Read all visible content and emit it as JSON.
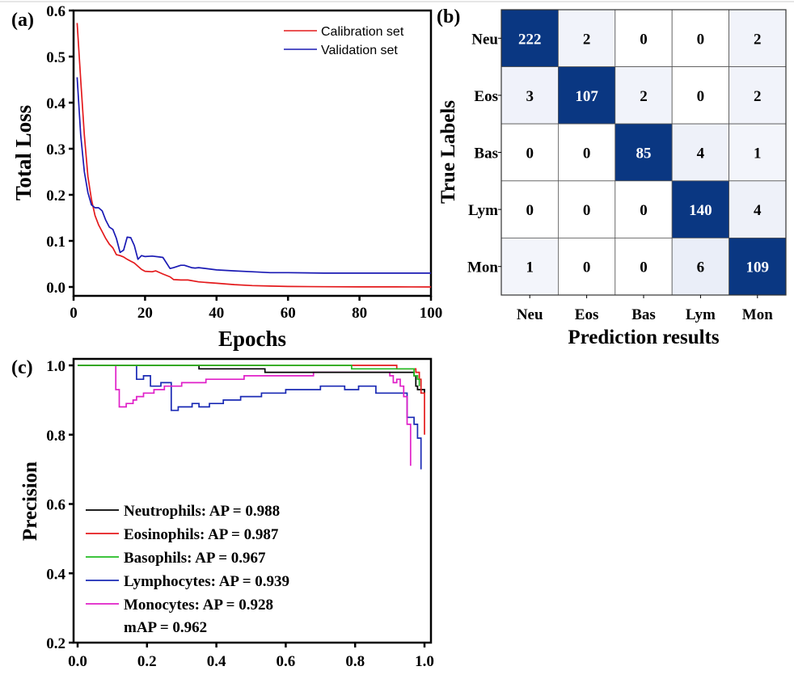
{
  "panels": {
    "a": {
      "label": "(a)"
    },
    "b": {
      "label": "(b)"
    },
    "c": {
      "label": "(c)"
    }
  },
  "chart_data": [
    {
      "id": "loss",
      "type": "line",
      "title": "",
      "xlabel": "Epochs",
      "ylabel": "Total Loss",
      "xlim": [
        0,
        100
      ],
      "ylim": [
        -0.02,
        0.6
      ],
      "xticks": [
        0,
        20,
        40,
        60,
        80,
        100
      ],
      "xtick_labels": [
        "0",
        "20",
        "40",
        "60",
        "80",
        "100"
      ],
      "yticks": [
        0.0,
        0.1,
        0.2,
        0.3,
        0.4,
        0.5,
        0.6
      ],
      "ytick_labels": [
        "0.0",
        "0.1",
        "0.2",
        "0.3",
        "0.4",
        "0.5",
        "0.6"
      ],
      "grid": false,
      "legend_position": "top-right",
      "series": [
        {
          "name": "Calibration set",
          "color": "#e41a1c",
          "x": [
            1,
            2,
            3,
            4,
            5,
            6,
            7,
            8,
            9,
            10,
            11,
            12,
            13,
            14,
            15,
            16,
            17,
            18,
            19,
            20,
            22,
            23,
            25,
            27,
            28,
            30,
            32,
            35,
            40,
            45,
            50,
            55,
            60,
            70,
            80,
            90,
            100
          ],
          "y": [
            0.573,
            0.45,
            0.33,
            0.24,
            0.19,
            0.155,
            0.135,
            0.12,
            0.105,
            0.093,
            0.085,
            0.07,
            0.068,
            0.065,
            0.06,
            0.056,
            0.052,
            0.045,
            0.038,
            0.034,
            0.033,
            0.035,
            0.028,
            0.022,
            0.016,
            0.015,
            0.015,
            0.011,
            0.008,
            0.005,
            0.003,
            0.002,
            0.001,
            0.0005,
            0.0002,
            0.0001,
            0.0
          ]
        },
        {
          "name": "Validation set",
          "color": "#1a1ab4",
          "x": [
            1,
            2,
            3,
            4,
            5,
            6,
            7,
            8,
            9,
            10,
            11,
            12,
            13,
            14,
            15,
            16,
            17,
            18,
            19,
            20,
            22,
            24,
            25,
            27,
            28,
            30,
            31,
            33,
            34,
            35,
            40,
            45,
            50,
            55,
            60,
            70,
            80,
            90,
            100
          ],
          "y": [
            0.455,
            0.33,
            0.25,
            0.205,
            0.178,
            0.172,
            0.172,
            0.165,
            0.145,
            0.13,
            0.125,
            0.105,
            0.075,
            0.08,
            0.108,
            0.107,
            0.09,
            0.06,
            0.068,
            0.066,
            0.067,
            0.065,
            0.064,
            0.04,
            0.042,
            0.047,
            0.047,
            0.042,
            0.041,
            0.042,
            0.037,
            0.035,
            0.033,
            0.031,
            0.031,
            0.03,
            0.03,
            0.03,
            0.03
          ]
        }
      ]
    },
    {
      "id": "confusion",
      "type": "heatmap",
      "title": "",
      "xlabel": "Prediction results",
      "ylabel": "True Labels",
      "row_labels": [
        "Neu",
        "Eos",
        "Bas",
        "Lym",
        "Mon"
      ],
      "col_labels": [
        "Neu",
        "Eos",
        "Bas",
        "Lym",
        "Mon"
      ],
      "values": [
        [
          222,
          2,
          0,
          0,
          2
        ],
        [
          3,
          107,
          2,
          0,
          2
        ],
        [
          0,
          0,
          85,
          4,
          1
        ],
        [
          0,
          0,
          0,
          140,
          4
        ],
        [
          1,
          0,
          0,
          6,
          109
        ]
      ],
      "colormap": {
        "low": "#ffffff",
        "mid": "#eaeef8",
        "high": "#0a3782"
      }
    },
    {
      "id": "pr",
      "type": "line",
      "title": "",
      "xlabel": "",
      "ylabel": "Precision",
      "xlim": [
        0.0,
        1.0
      ],
      "ylim": [
        0.2,
        1.0
      ],
      "xticks": [
        0.0,
        0.2,
        0.4,
        0.6,
        0.8,
        1.0
      ],
      "xtick_labels": [
        "0.0",
        "0.2",
        "0.4",
        "0.6",
        "0.8",
        "1.0"
      ],
      "yticks": [
        0.2,
        0.4,
        0.6,
        0.8,
        1.0
      ],
      "ytick_labels": [
        "0.2",
        "0.4",
        "0.6",
        "0.8",
        "1.0"
      ],
      "grid": false,
      "legend_position": "bottom-left",
      "legend_entries": [
        "Neutrophils: AP = 0.988",
        "Eosinophils: AP = 0.987",
        "Basophils: AP = 0.967",
        "Lymphocytes: AP = 0.939",
        "Monocytes: AP = 0.928"
      ],
      "annotation": "mAP = 0.962",
      "series": [
        {
          "name": "Neutrophils",
          "ap": 0.988,
          "color": "#000000",
          "x": [
            0.0,
            0.35,
            0.35,
            0.54,
            0.54,
            0.97,
            0.97,
            0.975,
            0.975,
            0.98,
            0.98,
            1.0,
            1.0
          ],
          "y": [
            1.0,
            1.0,
            0.99,
            0.99,
            0.98,
            0.98,
            0.97,
            0.97,
            0.94,
            0.94,
            0.93,
            0.93,
            0.92
          ]
        },
        {
          "name": "Eosinophils",
          "ap": 0.987,
          "color": "#e41a1c",
          "x": [
            0.0,
            0.92,
            0.92,
            0.975,
            0.975,
            0.985,
            0.985,
            0.99,
            0.99,
            1.0,
            1.0
          ],
          "y": [
            1.0,
            1.0,
            0.99,
            0.99,
            0.98,
            0.98,
            0.96,
            0.96,
            0.92,
            0.92,
            0.8
          ]
        },
        {
          "name": "Basophils",
          "ap": 0.967,
          "color": "#22bb22",
          "x": [
            0.0,
            0.79,
            0.79,
            0.97,
            0.97,
            0.98,
            0.98,
            0.985,
            0.985
          ],
          "y": [
            1.0,
            1.0,
            0.99,
            0.99,
            0.97,
            0.97,
            0.96,
            0.96,
            0.94
          ]
        },
        {
          "name": "Lymphocytes",
          "ap": 0.939,
          "color": "#1a2ab4",
          "x": [
            0.0,
            0.17,
            0.17,
            0.19,
            0.19,
            0.21,
            0.21,
            0.24,
            0.24,
            0.27,
            0.27,
            0.29,
            0.29,
            0.33,
            0.33,
            0.35,
            0.35,
            0.38,
            0.38,
            0.42,
            0.42,
            0.47,
            0.47,
            0.53,
            0.53,
            0.6,
            0.6,
            0.7,
            0.7,
            0.77,
            0.77,
            0.81,
            0.81,
            0.86,
            0.86,
            0.95,
            0.95,
            0.97,
            0.97,
            0.98,
            0.98,
            0.99,
            0.99
          ],
          "y": [
            1.0,
            1.0,
            0.96,
            0.96,
            0.97,
            0.97,
            0.94,
            0.94,
            0.95,
            0.95,
            0.87,
            0.87,
            0.88,
            0.88,
            0.89,
            0.89,
            0.88,
            0.88,
            0.89,
            0.89,
            0.9,
            0.9,
            0.91,
            0.91,
            0.92,
            0.92,
            0.93,
            0.93,
            0.94,
            0.94,
            0.93,
            0.93,
            0.94,
            0.94,
            0.92,
            0.92,
            0.85,
            0.85,
            0.83,
            0.83,
            0.79,
            0.79,
            0.7
          ]
        },
        {
          "name": "Monocytes",
          "ap": 0.928,
          "color": "#e020c8",
          "x": [
            0.0,
            0.11,
            0.11,
            0.12,
            0.12,
            0.14,
            0.14,
            0.16,
            0.16,
            0.17,
            0.17,
            0.19,
            0.19,
            0.22,
            0.22,
            0.25,
            0.25,
            0.3,
            0.3,
            0.37,
            0.37,
            0.48,
            0.48,
            0.68,
            0.68,
            0.9,
            0.9,
            0.91,
            0.91,
            0.92,
            0.92,
            0.93,
            0.93,
            0.94,
            0.94,
            0.95,
            0.95,
            0.96,
            0.96
          ],
          "y": [
            1.0,
            1.0,
            0.93,
            0.93,
            0.88,
            0.88,
            0.89,
            0.89,
            0.9,
            0.9,
            0.91,
            0.91,
            0.92,
            0.92,
            0.93,
            0.93,
            0.94,
            0.94,
            0.95,
            0.95,
            0.96,
            0.96,
            0.97,
            0.97,
            0.98,
            0.98,
            0.97,
            0.97,
            0.95,
            0.95,
            0.96,
            0.96,
            0.94,
            0.94,
            0.91,
            0.91,
            0.83,
            0.83,
            0.71
          ]
        }
      ]
    }
  ]
}
